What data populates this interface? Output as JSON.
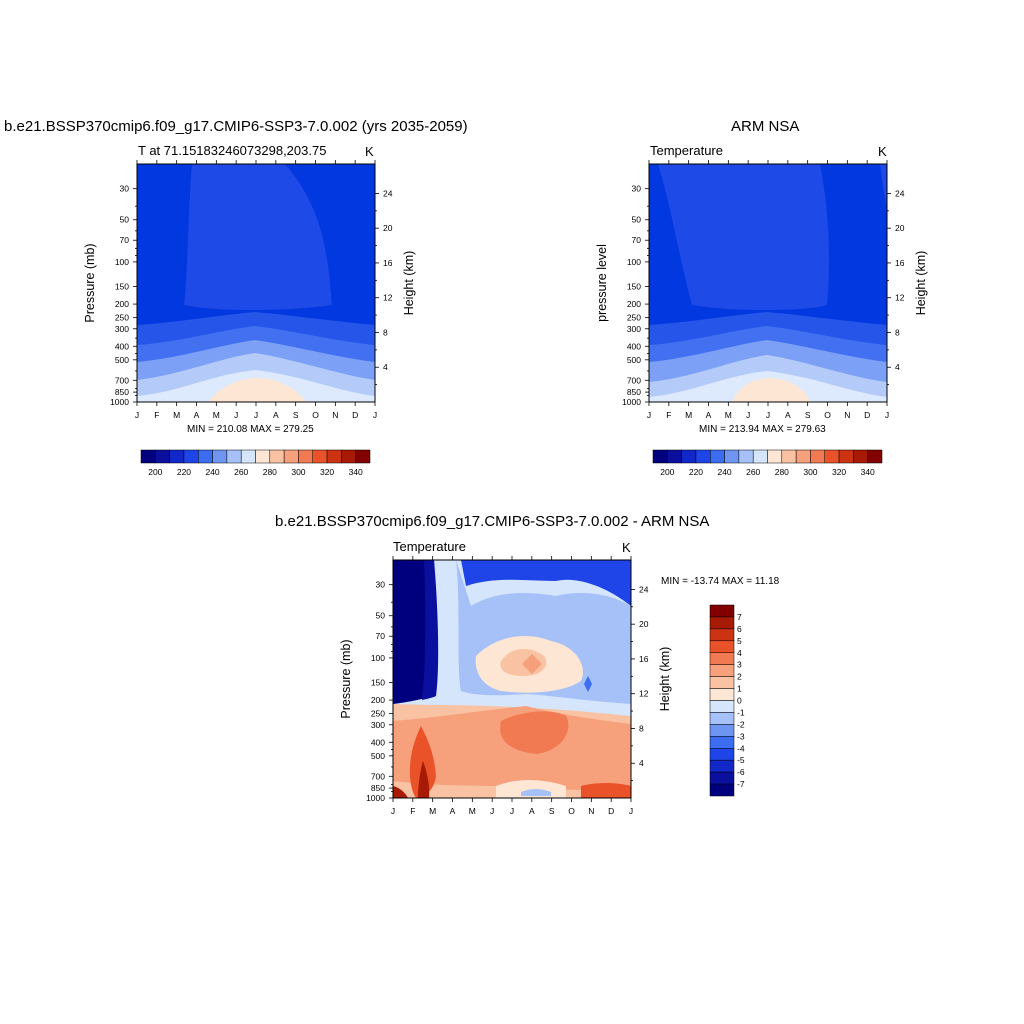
{
  "colors": {
    "levels15": [
      "#00007f",
      "#0a0f9e",
      "#1227c8",
      "#1f45e8",
      "#3c6cf0",
      "#7da0f5",
      "#b4cbfa",
      "#ddeafd",
      "#fde6d4",
      "#f9bfa0",
      "#f69470",
      "#f26a3f",
      "#e03b16",
      "#b8200c",
      "#820000"
    ],
    "levels16": [
      "#00007f",
      "#0a0f9e",
      "#1227c8",
      "#1f45e8",
      "#3c6cf0",
      "#6f95f3",
      "#a6c0f8",
      "#d5e5fc",
      "#fde6d4",
      "#f9c2a2",
      "#f6a07c",
      "#f27a52",
      "#ea5229",
      "#cc3312",
      "#a71a06",
      "#820000"
    ]
  },
  "panels": [
    {
      "title": "b.e21.BSSP370cmip6.f09_g17.CMIP6-SSP3-7.0.002 (yrs 2035-2059)",
      "left_string": "T at 71.15183246073298,203.75",
      "right_string": "K",
      "ylabel_left": "Pressure (mb)",
      "ylabel_right": "Height (km)",
      "minmax": "MIN = 210.08 MAX = 279.25"
    },
    {
      "title": "ARM NSA",
      "left_string": "Temperature",
      "right_string": "K",
      "ylabel_left": "pressure level",
      "ylabel_right": "Height (km)",
      "minmax": "MIN = 213.94 MAX = 279.63"
    },
    {
      "title": "b.e21.BSSP370cmip6.f09_g17.CMIP6-SSP3-7.0.002 - ARM NSA",
      "left_string": "Temperature",
      "right_string": "K",
      "ylabel_left": "Pressure (mb)",
      "ylabel_right": "Height (km)",
      "minmax": "MIN = -13.74 MAX =  11.18"
    }
  ],
  "chart_data": [
    {
      "type": "heatmap",
      "title": "b.e21.BSSP370cmip6.f09_g17.CMIP6-SSP3-7.0.002 (yrs 2035-2059)",
      "subtitle": "T at 71.15183246073298,203.75",
      "units": "K",
      "xlabel": "",
      "ylabel": "Pressure (mb)",
      "ylabel_right": "Height (km)",
      "x_ticks": [
        "J",
        "F",
        "M",
        "A",
        "M",
        "J",
        "J",
        "A",
        "S",
        "O",
        "N",
        "D",
        "J"
      ],
      "y_ticks": [
        "30",
        "50",
        "70",
        "100",
        "150",
        "200",
        "250",
        "300",
        "400",
        "500",
        "700",
        "850",
        "1000"
      ],
      "y_right_ticks": [
        "24",
        "20",
        "16",
        "12",
        "8",
        "4"
      ],
      "y_scale": "log",
      "levels": [
        "200",
        "220",
        "240",
        "260",
        "280",
        "300",
        "320",
        "340"
      ],
      "min": 210.08,
      "max": 279.25
    },
    {
      "type": "heatmap",
      "title": "ARM NSA",
      "subtitle": "Temperature",
      "units": "K",
      "xlabel": "",
      "ylabel": "pressure level",
      "ylabel_right": "Height (km)",
      "x_ticks": [
        "J",
        "F",
        "M",
        "A",
        "M",
        "J",
        "J",
        "A",
        "S",
        "O",
        "N",
        "D",
        "J"
      ],
      "y_ticks": [
        "30",
        "50",
        "70",
        "100",
        "150",
        "200",
        "250",
        "300",
        "400",
        "500",
        "700",
        "850",
        "1000"
      ],
      "y_right_ticks": [
        "24",
        "20",
        "16",
        "12",
        "8",
        "4"
      ],
      "y_scale": "log",
      "levels": [
        "200",
        "220",
        "240",
        "260",
        "280",
        "300",
        "320",
        "340"
      ],
      "min": 213.94,
      "max": 279.63
    },
    {
      "type": "heatmap",
      "title": "b.e21.BSSP370cmip6.f09_g17.CMIP6-SSP3-7.0.002 - ARM NSA",
      "subtitle": "Temperature",
      "units": "K",
      "xlabel": "",
      "ylabel": "Pressure (mb)",
      "ylabel_right": "Height (km)",
      "x_ticks": [
        "J",
        "F",
        "M",
        "A",
        "M",
        "J",
        "J",
        "A",
        "S",
        "O",
        "N",
        "D",
        "J"
      ],
      "y_ticks": [
        "30",
        "50",
        "70",
        "100",
        "150",
        "200",
        "250",
        "300",
        "400",
        "500",
        "700",
        "850",
        "1000"
      ],
      "y_right_ticks": [
        "24",
        "20",
        "16",
        "12",
        "8",
        "4"
      ],
      "y_scale": "log",
      "levels": [
        "7",
        "6",
        "5",
        "4",
        "3",
        "2",
        "1",
        "0",
        "-1",
        "-2",
        "-3",
        "-4",
        "-5",
        "-6",
        "-7"
      ],
      "min": -13.74,
      "max": 11.18
    }
  ]
}
